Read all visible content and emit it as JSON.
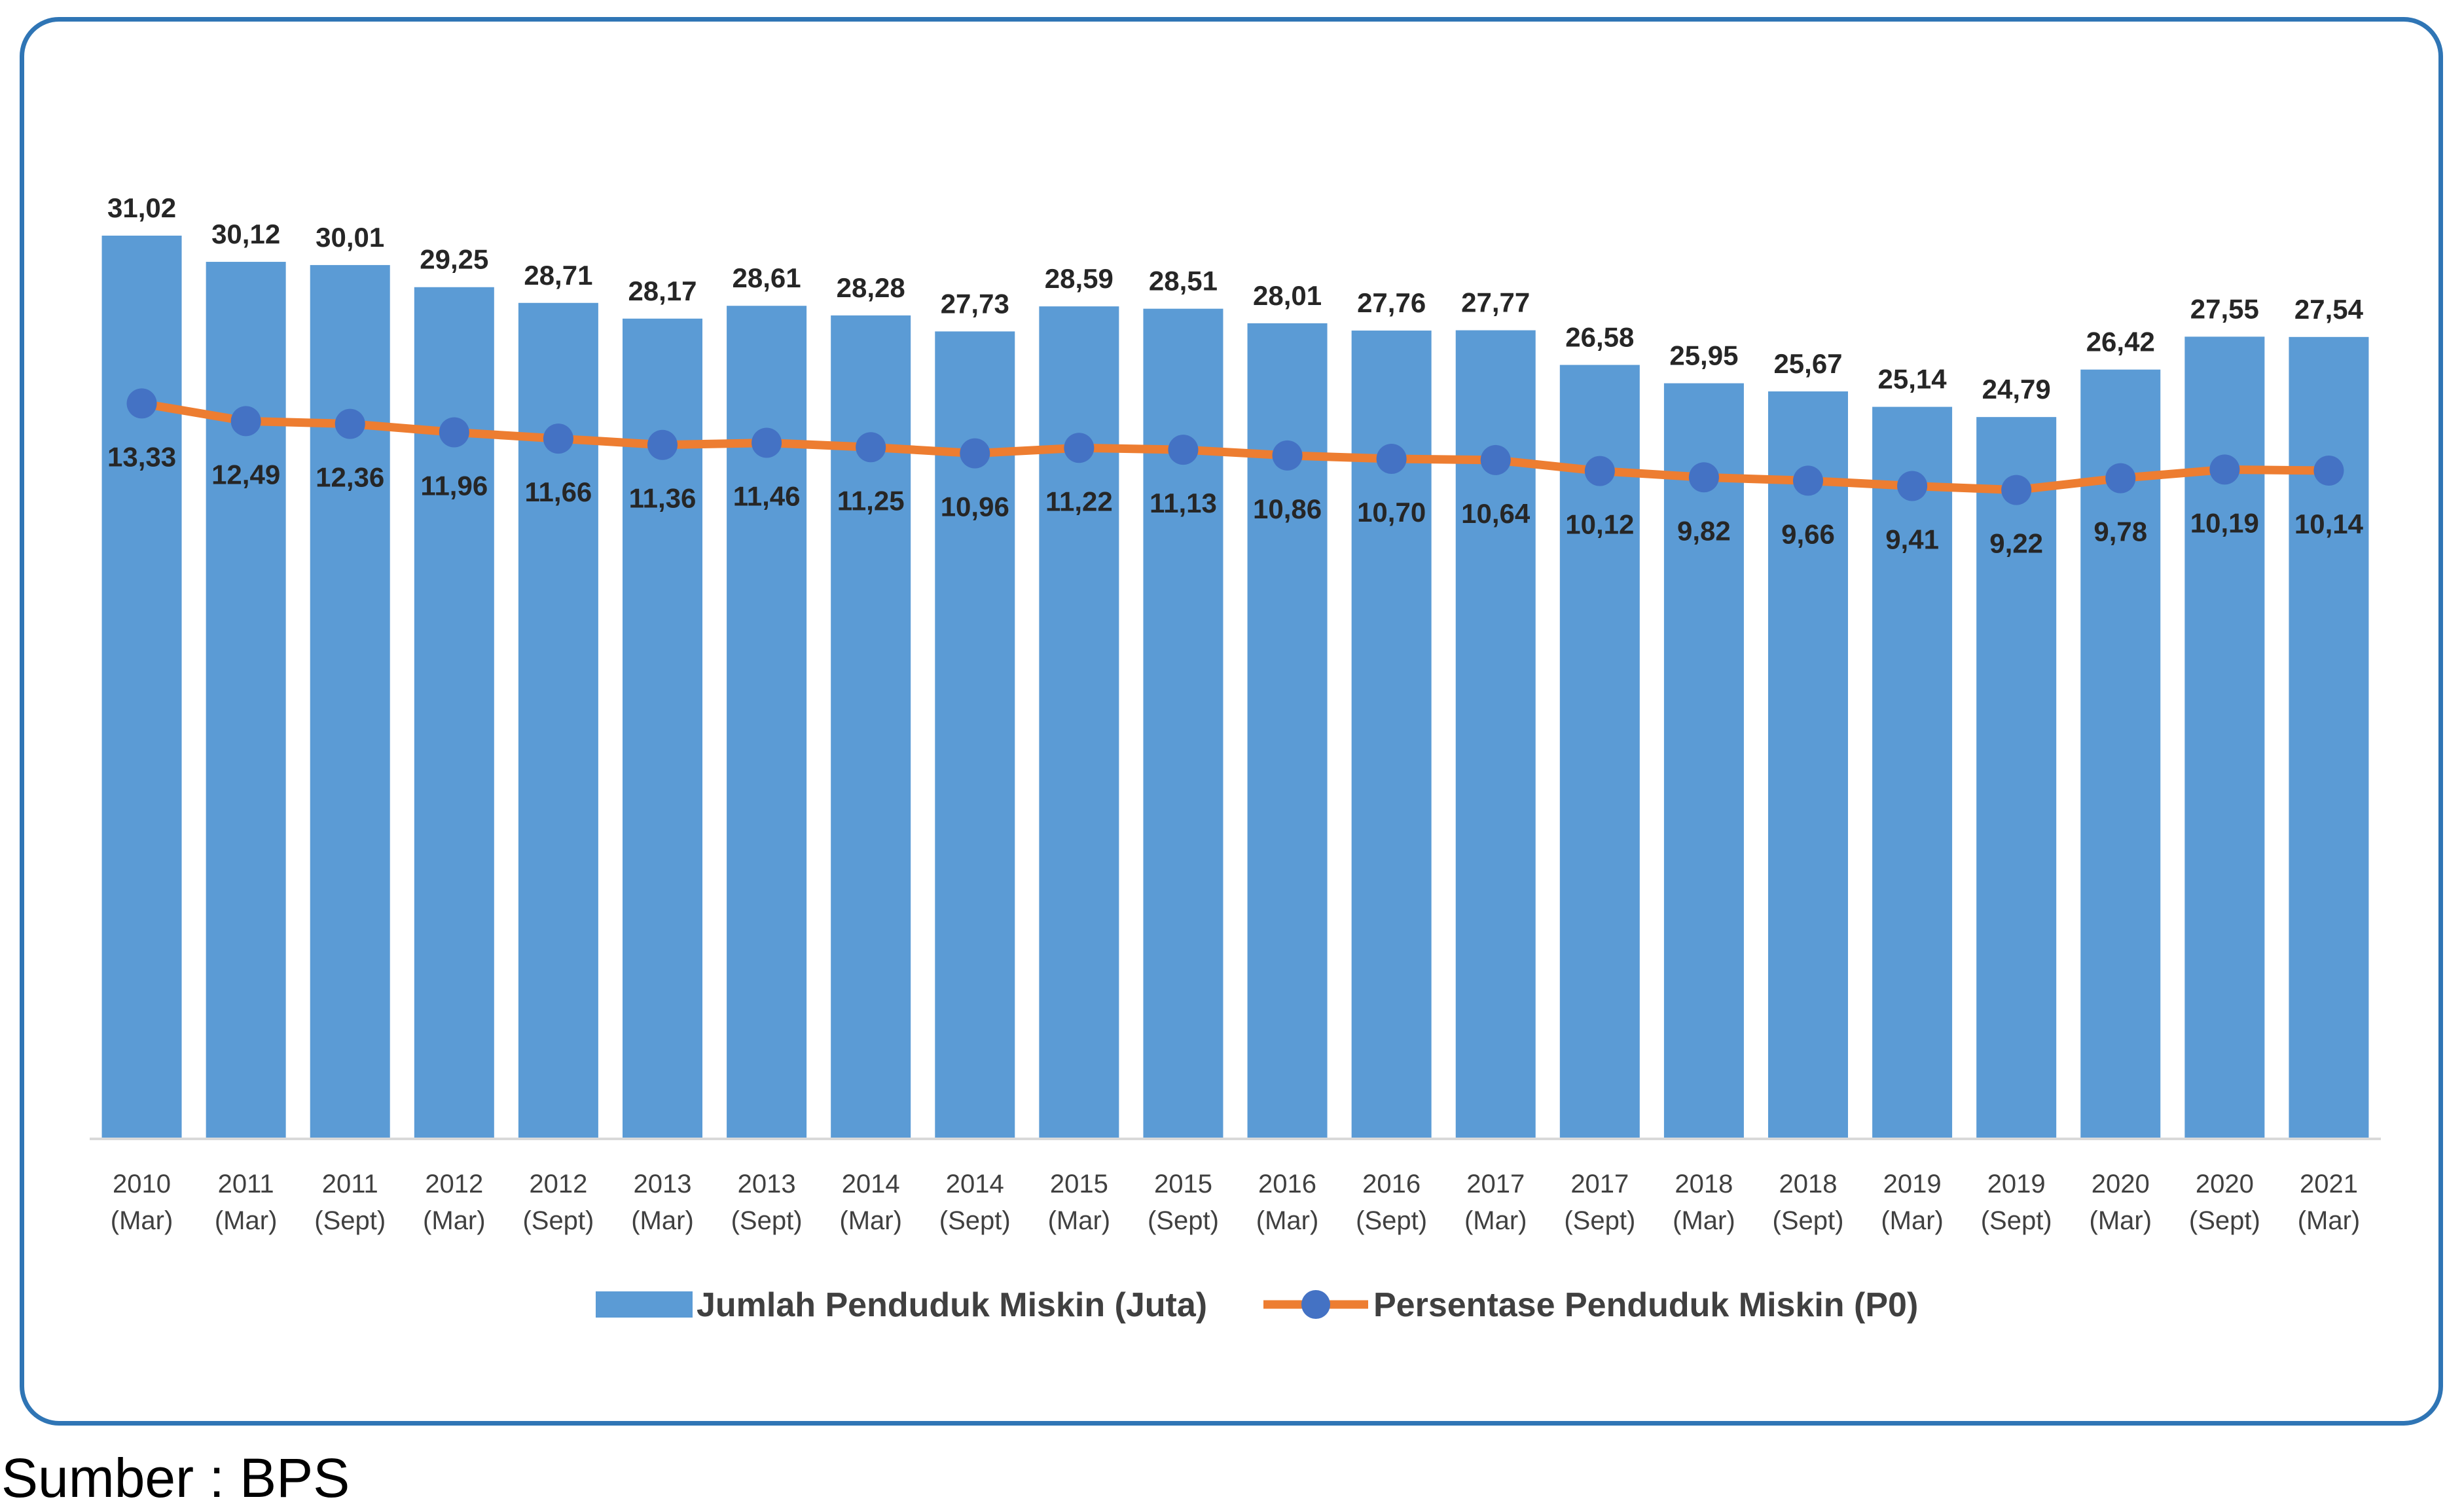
{
  "chart_data": {
    "type": "bar",
    "title": "",
    "xlabel": "",
    "ylabel": "",
    "categories": [
      [
        "2010",
        "(Mar)"
      ],
      [
        "2011",
        "(Mar)"
      ],
      [
        "2011",
        "(Sept)"
      ],
      [
        "2012",
        "(Mar)"
      ],
      [
        "2012",
        "(Sept)"
      ],
      [
        "2013",
        "(Mar)"
      ],
      [
        "2013",
        "(Sept)"
      ],
      [
        "2014",
        "(Mar)"
      ],
      [
        "2014",
        "(Sept)"
      ],
      [
        "2015",
        "(Mar)"
      ],
      [
        "2015",
        "(Sept)"
      ],
      [
        "2016",
        "(Mar)"
      ],
      [
        "2016",
        "(Sept)"
      ],
      [
        "2017",
        "(Mar)"
      ],
      [
        "2017",
        "(Sept)"
      ],
      [
        "2018",
        "(Mar)"
      ],
      [
        "2018",
        "(Sept)"
      ],
      [
        "2019",
        "(Mar)"
      ],
      [
        "2019",
        "(Sept)"
      ],
      [
        "2020",
        "(Mar)"
      ],
      [
        "2020",
        "(Sept)"
      ],
      [
        "2021",
        "(Mar)"
      ]
    ],
    "series": [
      {
        "name": "Jumlah Penduduk Miskin (Juta)",
        "kind": "bar",
        "color": "#5b9bd5",
        "values": [
          31.02,
          30.12,
          30.01,
          29.25,
          28.71,
          28.17,
          28.61,
          28.28,
          27.73,
          28.59,
          28.51,
          28.01,
          27.76,
          27.77,
          26.58,
          25.95,
          25.67,
          25.14,
          24.79,
          26.42,
          27.55,
          27.54
        ],
        "labels": [
          "31,02",
          "30,12",
          "30,01",
          "29,25",
          "28,71",
          "28,17",
          "28,61",
          "28,28",
          "27,73",
          "28,59",
          "28,51",
          "28,01",
          "27,76",
          "27,77",
          "26,58",
          "25,95",
          "25,67",
          "25,14",
          "24,79",
          "26,42",
          "27,55",
          "27,54"
        ]
      },
      {
        "name": "Persentase Penduduk Miskin (P0)",
        "kind": "line",
        "color": "#ed7d31",
        "marker_color": "#4472c4",
        "values": [
          13.33,
          12.49,
          12.36,
          11.96,
          11.66,
          11.36,
          11.46,
          11.25,
          10.96,
          11.22,
          11.13,
          10.86,
          10.7,
          10.64,
          10.12,
          9.82,
          9.66,
          9.41,
          9.22,
          9.78,
          10.19,
          10.14
        ],
        "labels": [
          "13,33",
          "12,49",
          "12,36",
          "11,96",
          "11,66",
          "11,36",
          "11,46",
          "11,25",
          "10,96",
          "11,22",
          "11,13",
          "10,86",
          "10,70",
          "10,64",
          "10,12",
          "9,82",
          "9,66",
          "9,41",
          "9,22",
          "9,78",
          "10,19",
          "10,14"
        ]
      }
    ],
    "ylim": [
      0,
      31.02
    ],
    "line_ylim": [
      -21.6,
      21.3
    ],
    "grid": false,
    "legend_position": "bottom"
  },
  "source": "Sumber : BPS"
}
